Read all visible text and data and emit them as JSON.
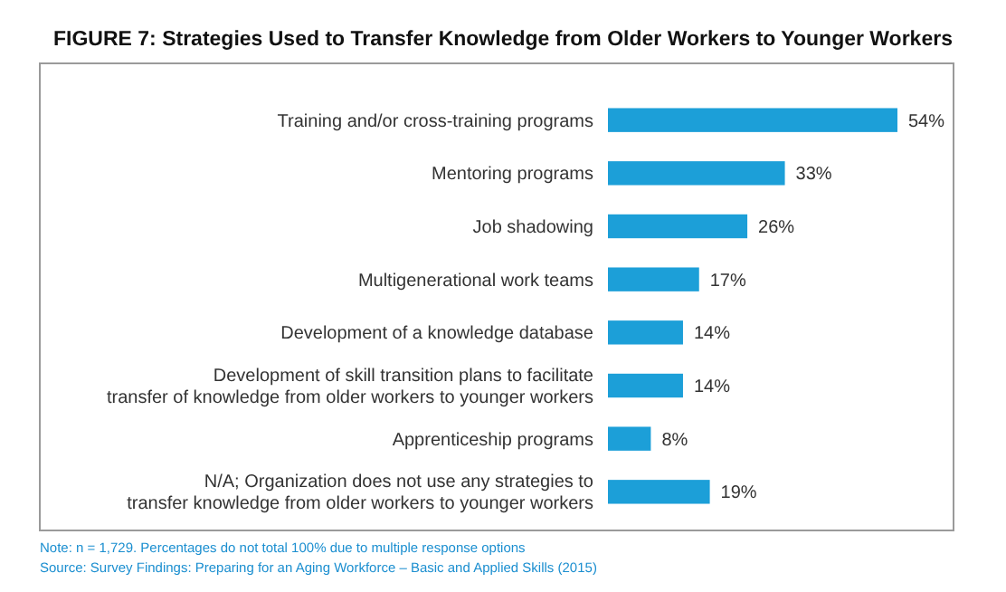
{
  "chart_data": {
    "type": "bar",
    "orientation": "horizontal",
    "title": "FIGURE 7: Strategies Used to Transfer Knowledge from Older Workers to Younger Workers",
    "categories": [
      "Training and/or cross-training programs",
      "Mentoring programs",
      "Job shadowing",
      "Multigenerational work teams",
      "Development of a knowledge database",
      "Development of skill transition plans to facilitate transfer of knowledge from older workers to younger workers",
      "Apprenticeship programs",
      "N/A; Organization does not use any strategies to transfer knowledge from older workers to younger workers"
    ],
    "values": [
      54,
      33,
      26,
      17,
      14,
      14,
      8,
      19
    ],
    "value_labels": [
      "54%",
      "33%",
      "26%",
      "17%",
      "14%",
      "14%",
      "8%",
      "19%"
    ],
    "color": "#1c9fd8",
    "annotations": [
      "Note: n = 1,729. Percentages do not total 100% due to multiple response options",
      "Source: Survey Findings: Preparing for an Aging Workforce – Basic and Applied Skills (2015)"
    ]
  }
}
